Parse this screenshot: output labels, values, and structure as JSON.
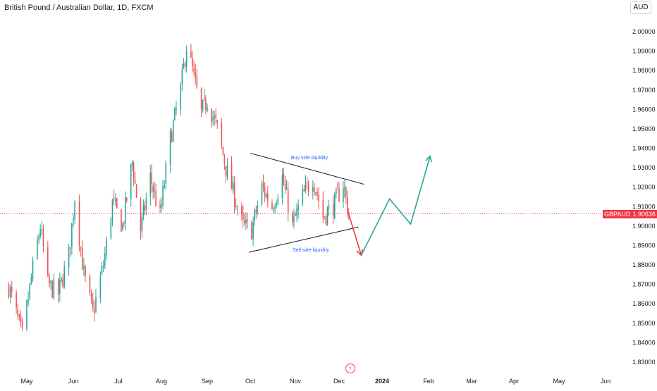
{
  "header": {
    "title": "British Pound / Australian Dollar, 1D, FXCM",
    "currency": "AUD"
  },
  "price_tag": {
    "symbol": "GBPAUD",
    "value": "1.90636"
  },
  "annotations": {
    "buy_side": "Buy side liquidity",
    "sell_side": "Sell side liquidity"
  },
  "event_icon": "lightning-icon",
  "colors": {
    "up": "#26a69a",
    "down": "#ef5350",
    "annotation_text": "#2962ff",
    "price_line": "#f23645",
    "arrow_up": "#26a69a",
    "arrow_down": "#f23645"
  },
  "chart_data": {
    "type": "candlestick",
    "title": "British Pound / Australian Dollar, 1D, FXCM",
    "yaxis": {
      "ylim": [
        1.826,
        2.008
      ],
      "ticks": [
        "2.00000",
        "1.99000",
        "1.98000",
        "1.97000",
        "1.96000",
        "1.95000",
        "1.94000",
        "1.93000",
        "1.92000",
        "1.91000",
        "1.90000",
        "1.89000",
        "1.88000",
        "1.87000",
        "1.86000",
        "1.85000",
        "1.84000",
        "1.83000"
      ],
      "tick_values": [
        2.0,
        1.99,
        1.98,
        1.97,
        1.96,
        1.95,
        1.94,
        1.93,
        1.92,
        1.91,
        1.9,
        1.89,
        1.88,
        1.87,
        1.86,
        1.85,
        1.84,
        1.83
      ]
    },
    "xaxis": {
      "ticks": [
        "May",
        "Jun",
        "Jul",
        "Aug",
        "Sep",
        "Oct",
        "Nov",
        "Dec",
        "2024",
        "Feb",
        "Mar",
        "Apr",
        "May",
        "Jun"
      ]
    },
    "current_price": 1.90636,
    "path_points": [
      {
        "date": "2023-04-19",
        "close": 1.869
      },
      {
        "date": "2023-04-28",
        "close": 1.843
      },
      {
        "date": "2023-05-05",
        "close": 1.878
      },
      {
        "date": "2023-05-10",
        "close": 1.9
      },
      {
        "date": "2023-05-15",
        "close": 1.87
      },
      {
        "date": "2023-05-22",
        "close": 1.865
      },
      {
        "date": "2023-05-29",
        "close": 1.885
      },
      {
        "date": "2023-06-02",
        "close": 1.915
      },
      {
        "date": "2023-06-08",
        "close": 1.875
      },
      {
        "date": "2023-06-14",
        "close": 1.855
      },
      {
        "date": "2023-06-21",
        "close": 1.88
      },
      {
        "date": "2023-06-27",
        "close": 1.912
      },
      {
        "date": "2023-07-04",
        "close": 1.9
      },
      {
        "date": "2023-07-11",
        "close": 1.933
      },
      {
        "date": "2023-07-17",
        "close": 1.898
      },
      {
        "date": "2023-07-24",
        "close": 1.925
      },
      {
        "date": "2023-07-31",
        "close": 1.905
      },
      {
        "date": "2023-08-07",
        "close": 1.945
      },
      {
        "date": "2023-08-14",
        "close": 1.97
      },
      {
        "date": "2023-08-18",
        "close": 1.993
      },
      {
        "date": "2023-08-22",
        "close": 1.98
      },
      {
        "date": "2023-08-28",
        "close": 1.958
      },
      {
        "date": "2023-09-01",
        "close": 1.965
      },
      {
        "date": "2023-09-08",
        "close": 1.95
      },
      {
        "date": "2023-09-14",
        "close": 1.93
      },
      {
        "date": "2023-09-20",
        "close": 1.915
      },
      {
        "date": "2023-09-26",
        "close": 1.9
      },
      {
        "date": "2023-10-02",
        "close": 1.898
      },
      {
        "date": "2023-10-09",
        "close": 1.92
      },
      {
        "date": "2023-10-16",
        "close": 1.91
      },
      {
        "date": "2023-10-23",
        "close": 1.925
      },
      {
        "date": "2023-10-30",
        "close": 1.9
      },
      {
        "date": "2023-11-06",
        "close": 1.915
      },
      {
        "date": "2023-11-13",
        "close": 1.925
      },
      {
        "date": "2023-11-20",
        "close": 1.905
      },
      {
        "date": "2023-11-27",
        "close": 1.91
      },
      {
        "date": "2023-12-04",
        "close": 1.922
      },
      {
        "date": "2023-12-08",
        "close": 1.906
      }
    ],
    "trendlines": [
      {
        "name": "upper",
        "from": {
          "date": "2023-10-01",
          "price": 1.9375
        },
        "to": {
          "date": "2023-12-19",
          "price": 1.9215
        }
      },
      {
        "name": "lower",
        "from": {
          "date": "2023-09-30",
          "price": 1.8865
        },
        "to": {
          "date": "2023-12-15",
          "price": 1.8995
        }
      }
    ],
    "projection_down": [
      {
        "date": "2023-12-08",
        "price": 1.906
      },
      {
        "date": "2023-12-17",
        "price": 1.885
      }
    ],
    "projection_up": [
      {
        "date": "2023-12-17",
        "price": 1.885
      },
      {
        "date": "2024-01-06",
        "price": 1.914
      },
      {
        "date": "2024-01-20",
        "price": 1.901
      },
      {
        "date": "2024-02-02",
        "price": 1.936
      }
    ]
  }
}
